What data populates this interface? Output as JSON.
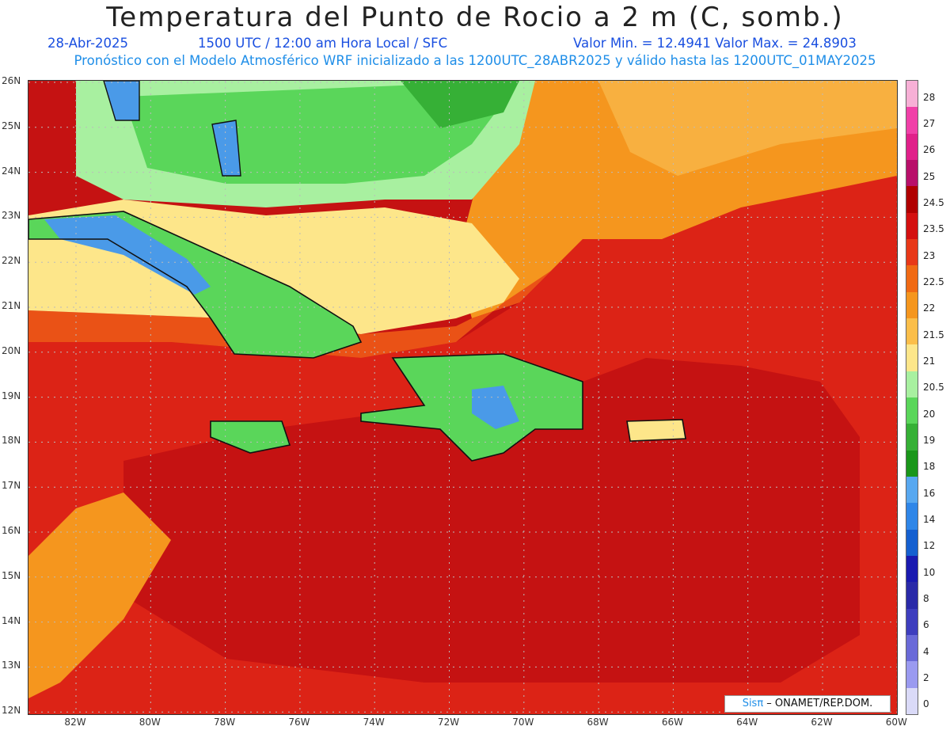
{
  "title": "Temperatura del Punto de Rocio a 2 m (C, somb.)",
  "subtitle": {
    "date": "28-Abr-2025",
    "time": "1500 UTC / 12:00 am Hora Local / SFC",
    "minmax": "Valor Min. = 12.4941  Valor Max. = 24.8903"
  },
  "forecast_line": "Pronóstico con el Modelo Atmosférico WRF inicializado a las 1200UTC_28ABR2025 y válido hasta las  1200UTC_01MAY2025",
  "lat_labels": [
    "26N",
    "25N",
    "24N",
    "23N",
    "22N",
    "21N",
    "20N",
    "19N",
    "18N",
    "17N",
    "16N",
    "15N",
    "14N",
    "13N",
    "12N"
  ],
  "lon_labels": [
    "82W",
    "80W",
    "78W",
    "76W",
    "74W",
    "72W",
    "70W",
    "68W",
    "66W",
    "64W",
    "62W",
    "60W"
  ],
  "colorbar": {
    "labels": [
      "28",
      "27",
      "26",
      "25",
      "24.5",
      "23.5",
      "23",
      "22.5",
      "22",
      "21.5",
      "21",
      "20.5",
      "20",
      "19",
      "18",
      "16",
      "14",
      "12",
      "10",
      "8",
      "6",
      "4",
      "2",
      "0"
    ],
    "colors": [
      "#f7b0d6",
      "#f040a8",
      "#e0208a",
      "#b8106a",
      "#b00000",
      "#d41010",
      "#e83818",
      "#f06a14",
      "#f5961e",
      "#fbbe4a",
      "#fde68a",
      "#a8f0a0",
      "#5ad65a",
      "#36b036",
      "#1a961a",
      "#58a8f0",
      "#2f86e8",
      "#1560d0",
      "#1a1ab0",
      "#2a2aa8",
      "#3e3ebe",
      "#6a6ad8",
      "#9a9af0",
      "#dadaf8"
    ]
  },
  "credit": {
    "brand": "Sisπ",
    "org": " –  ONAMET/REP.DOM."
  },
  "field_colors": {
    "deep_red": "#c51212",
    "red": "#dc2316",
    "orange_red": "#ea5216",
    "orange": "#f5961e",
    "light_orange": "#f8b040",
    "yellow": "#fde68a",
    "light_green": "#a8f0a0",
    "green": "#5ad65a",
    "dark_green": "#36b036",
    "blue": "#4a9ae8"
  }
}
